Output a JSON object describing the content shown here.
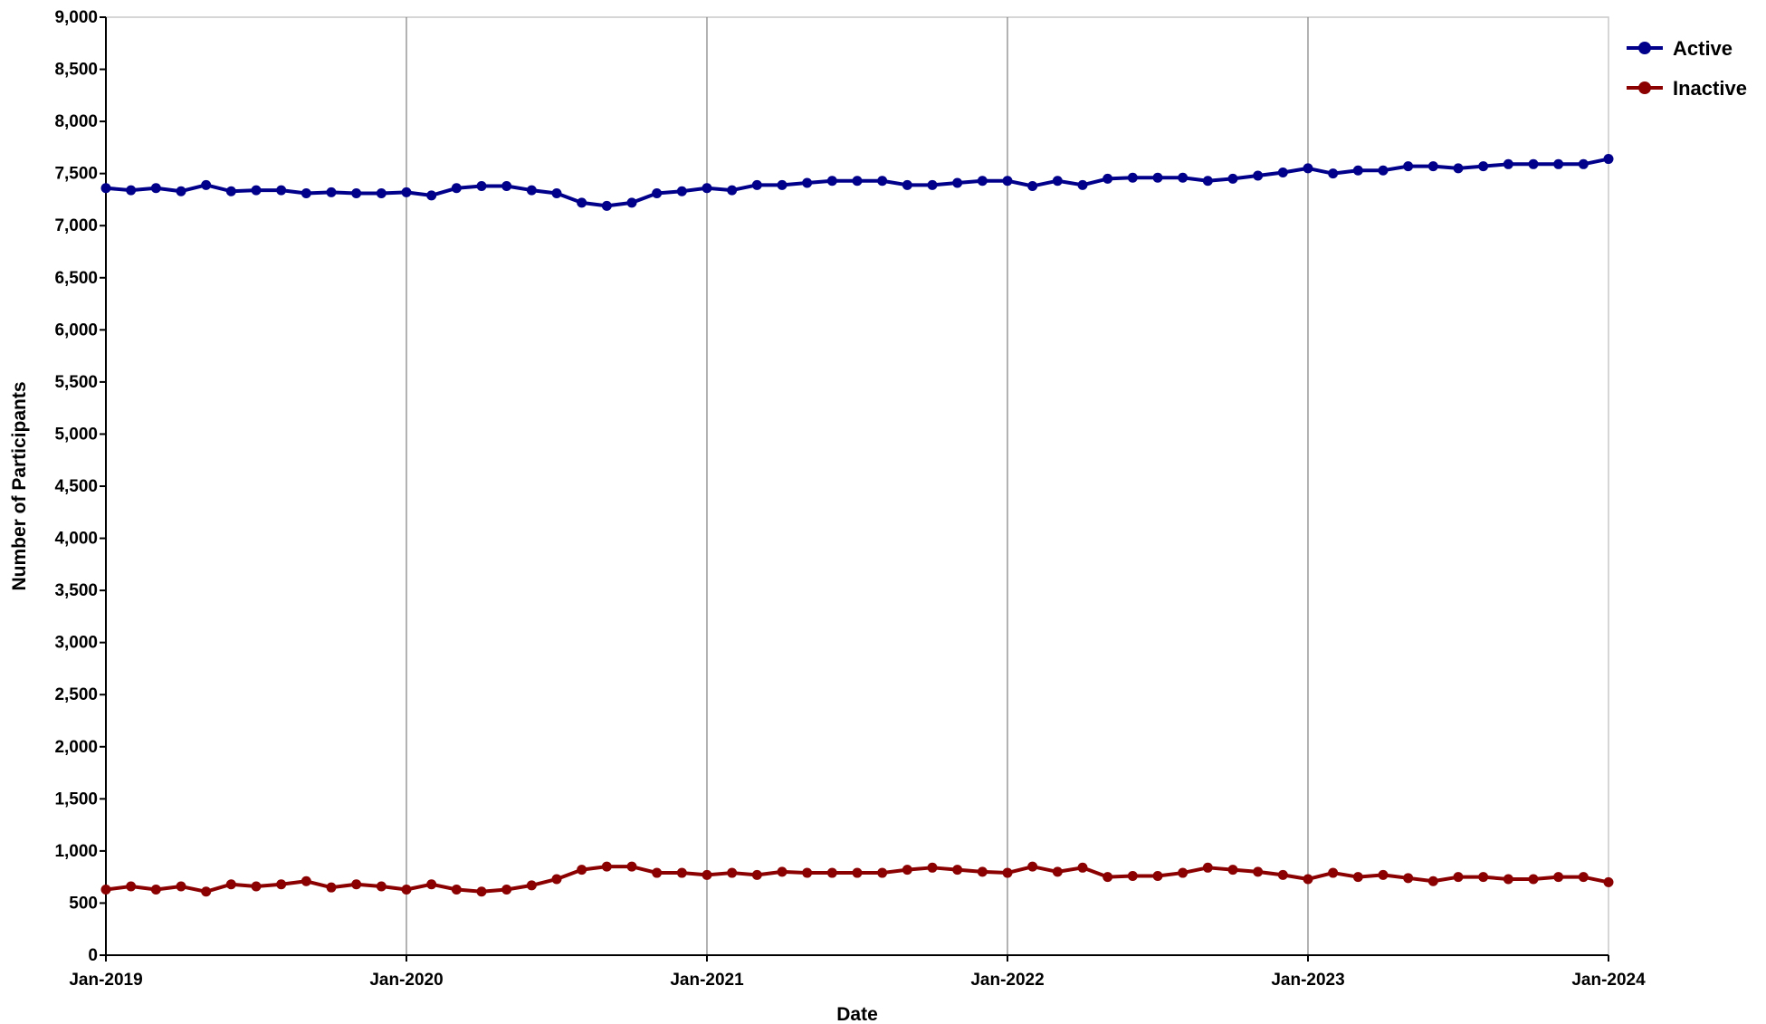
{
  "chart_data": {
    "type": "line",
    "title": "",
    "xlabel": "Date",
    "ylabel": "Number of Participants",
    "ylim": [
      0,
      9000
    ],
    "yticks": [
      0,
      500,
      1000,
      1500,
      2000,
      2500,
      3000,
      3500,
      4000,
      4500,
      5000,
      5500,
      6000,
      6500,
      7000,
      7500,
      8000,
      8500,
      9000
    ],
    "ytick_labels": [
      "0",
      "500",
      "1,000",
      "1,500",
      "2,000",
      "2,500",
      "3,000",
      "3,500",
      "4,000",
      "4,500",
      "5,000",
      "5,500",
      "6,000",
      "6,500",
      "7,000",
      "7,500",
      "8,000",
      "8,500",
      "9,000"
    ],
    "xlim": [
      "2019-01",
      "2024-01"
    ],
    "xticks": [
      "2019-01",
      "2020-01",
      "2021-01",
      "2022-01",
      "2023-01",
      "2024-01"
    ],
    "xtick_labels": [
      "Jan-2019",
      "Jan-2020",
      "Jan-2021",
      "Jan-2022",
      "Jan-2023",
      "Jan-2024"
    ],
    "vertical_grid": true,
    "horizontal_grid": false,
    "legend_position": "top-right",
    "x": [
      "2019-01",
      "2019-02",
      "2019-03",
      "2019-04",
      "2019-05",
      "2019-06",
      "2019-07",
      "2019-08",
      "2019-09",
      "2019-10",
      "2019-11",
      "2019-12",
      "2020-01",
      "2020-02",
      "2020-03",
      "2020-04",
      "2020-05",
      "2020-06",
      "2020-07",
      "2020-08",
      "2020-09",
      "2020-10",
      "2020-11",
      "2020-12",
      "2021-01",
      "2021-02",
      "2021-03",
      "2021-04",
      "2021-05",
      "2021-06",
      "2021-07",
      "2021-08",
      "2021-09",
      "2021-10",
      "2021-11",
      "2021-12",
      "2022-01",
      "2022-02",
      "2022-03",
      "2022-04",
      "2022-05",
      "2022-06",
      "2022-07",
      "2022-08",
      "2022-09",
      "2022-10",
      "2022-11",
      "2022-12",
      "2023-01",
      "2023-02",
      "2023-03",
      "2023-04",
      "2023-05",
      "2023-06",
      "2023-07",
      "2023-08",
      "2023-09",
      "2023-10",
      "2023-11",
      "2023-12",
      "2024-01"
    ],
    "series": [
      {
        "name": "Active",
        "color": "#00008b",
        "values": [
          7360,
          7340,
          7360,
          7330,
          7390,
          7330,
          7340,
          7340,
          7310,
          7320,
          7310,
          7310,
          7320,
          7290,
          7360,
          7380,
          7380,
          7340,
          7310,
          7220,
          7190,
          7220,
          7310,
          7330,
          7360,
          7340,
          7390,
          7390,
          7410,
          7430,
          7430,
          7430,
          7390,
          7390,
          7410,
          7430,
          7430,
          7380,
          7430,
          7390,
          7450,
          7460,
          7460,
          7460,
          7430,
          7450,
          7480,
          7510,
          7550,
          7500,
          7530,
          7530,
          7570,
          7570,
          7550,
          7570,
          7590,
          7590,
          7590,
          7590,
          7640
        ]
      },
      {
        "name": "Inactive",
        "color": "#8b0000",
        "values": [
          630,
          660,
          630,
          660,
          610,
          680,
          660,
          680,
          710,
          650,
          680,
          660,
          630,
          680,
          630,
          610,
          630,
          670,
          730,
          820,
          850,
          850,
          790,
          790,
          770,
          790,
          770,
          800,
          790,
          790,
          790,
          790,
          820,
          840,
          820,
          800,
          790,
          850,
          800,
          840,
          750,
          760,
          760,
          790,
          840,
          820,
          800,
          770,
          730,
          790,
          750,
          770,
          740,
          710,
          750,
          750,
          730,
          730,
          750,
          750,
          700
        ]
      }
    ]
  }
}
